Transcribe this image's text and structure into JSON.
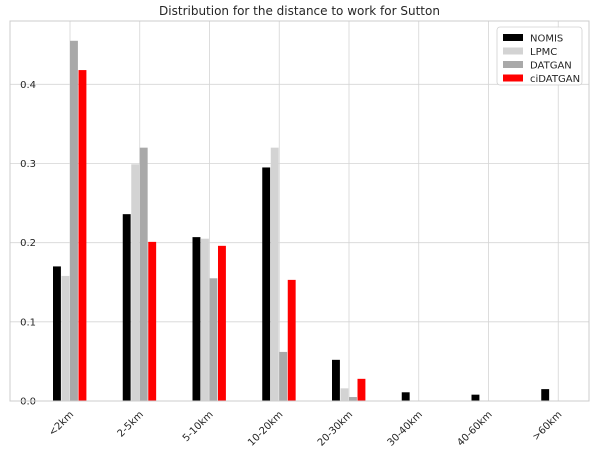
{
  "chart_data": {
    "type": "bar",
    "title": "Distribution for the distance to work for Sutton",
    "xlabel": "",
    "ylabel": "",
    "categories": [
      "<2km",
      "2-5km",
      "5-10km",
      "10-20km",
      "20-30km",
      "30-40km",
      "40-60km",
      ">60km"
    ],
    "ylim": [
      0,
      0.48
    ],
    "yticks": [
      "0.0",
      "0.1",
      "0.2",
      "0.3",
      "0.4"
    ],
    "grid": true,
    "legend_position": "top-right",
    "series": [
      {
        "name": "NOMIS",
        "color": "#000000",
        "values": [
          0.17,
          0.236,
          0.207,
          0.295,
          0.052,
          0.011,
          0.008,
          0.015
        ]
      },
      {
        "name": "LPMC",
        "color": "#d3d3d3",
        "values": [
          0.158,
          0.299,
          0.205,
          0.32,
          0.016,
          0.0,
          0.0,
          0.0
        ]
      },
      {
        "name": "DATGAN",
        "color": "#a9a9a9",
        "values": [
          0.455,
          0.32,
          0.155,
          0.062,
          0.005,
          0.0,
          0.0,
          0.0
        ]
      },
      {
        "name": "ciDATGAN",
        "color": "#ff0000",
        "values": [
          0.418,
          0.201,
          0.196,
          0.153,
          0.028,
          0.0,
          0.0,
          0.0
        ]
      }
    ]
  }
}
